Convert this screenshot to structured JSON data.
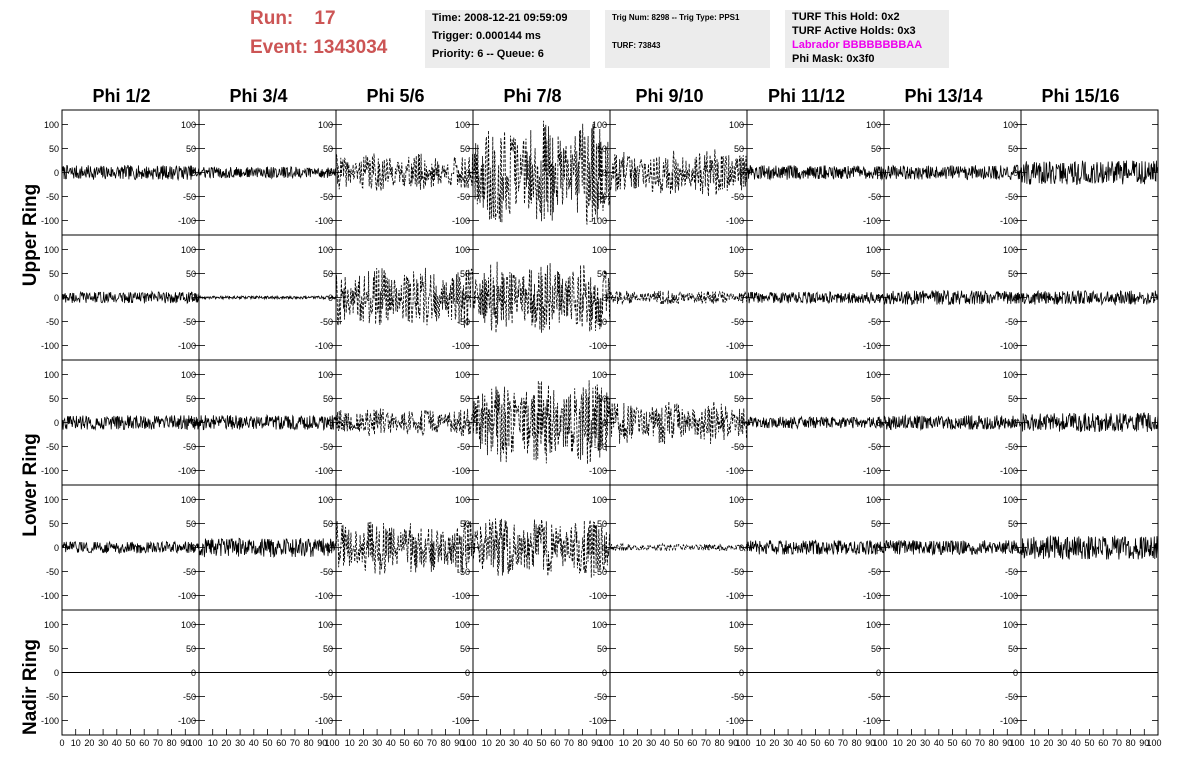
{
  "header": {
    "run_label": "Run:",
    "run_value": "17",
    "event_label": "Event:",
    "event_value": "1343034",
    "time": "Time: 2008-12-21 09:59:09",
    "trigger": "Trigger: 0.000144 ms",
    "priority": "Priority: 6 -- Queue: 6",
    "trig_num": "Trig Num: 8298 -- Trig Type: PPS1",
    "turf": "TURF: 73843",
    "turf_hold": "TURF This Hold: 0x2",
    "turf_active": "TURF Active Holds: 0x3",
    "labrador": "Labrador BBBBBBBBAA",
    "phi_mask": "Phi Mask: 0x3f0"
  },
  "colors": {
    "run_text": "#cc5555",
    "labrador": "#ee00ee",
    "info_bg": "#ececec"
  },
  "chart_data": {
    "type": "line",
    "columns": [
      "Phi 1/2",
      "Phi 3/4",
      "Phi 5/6",
      "Phi 7/8",
      "Phi 9/10",
      "Phi 11/12",
      "Phi 13/14",
      "Phi 15/16"
    ],
    "rows": [
      "Upper Ring",
      "Upper Ring",
      "Lower Ring",
      "Lower Ring",
      "Nadir Ring"
    ],
    "row_labels": [
      "Upper Ring",
      "Lower Ring",
      "Nadir Ring"
    ],
    "xlim": [
      0,
      100
    ],
    "ylim": [
      -130,
      130
    ],
    "x_ticks": [
      "10",
      "20",
      "30",
      "40",
      "50",
      "60",
      "70",
      "80",
      "90",
      "100"
    ],
    "x_tick_first_panel_zero": "0",
    "y_ticks": [
      "100",
      "50",
      "0",
      "-50",
      "-100"
    ],
    "amplitude": [
      [
        15,
        12,
        40,
        110,
        50,
        15,
        15,
        25
      ],
      [
        12,
        3,
        65,
        75,
        15,
        12,
        15,
        15
      ],
      [
        15,
        15,
        30,
        90,
        45,
        12,
        15,
        20
      ],
      [
        12,
        20,
        60,
        65,
        8,
        15,
        15,
        25
      ],
      [
        0,
        0,
        0,
        0,
        0,
        0,
        0,
        0
      ]
    ],
    "dashed_style": [
      [
        false,
        false,
        true,
        true,
        true,
        false,
        false,
        false
      ],
      [
        false,
        false,
        true,
        true,
        true,
        false,
        false,
        false
      ],
      [
        false,
        false,
        true,
        true,
        true,
        false,
        false,
        false
      ],
      [
        false,
        false,
        true,
        true,
        true,
        false,
        false,
        false
      ],
      [
        false,
        false,
        false,
        false,
        false,
        false,
        false,
        false
      ]
    ]
  }
}
